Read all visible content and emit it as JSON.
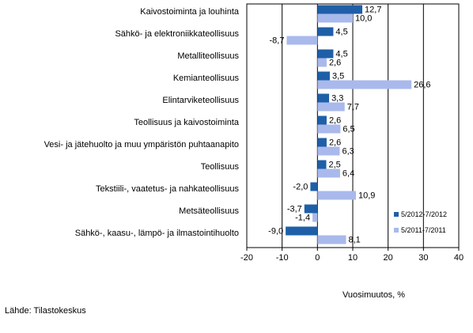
{
  "source": "Lähde: Tilastokeskus",
  "chart_data": {
    "type": "bar",
    "orientation": "horizontal",
    "categories": [
      "Kaivostoiminta ja louhinta",
      "Sähkö- ja elektroniikkateollisuus",
      "Metalliteollisuus",
      "Kemianteollisuus",
      "Elintarviketeollisuus",
      "Teollisuus ja kaivostoiminta",
      "Vesi- ja jätehuolto ja muu ympäristön puhtaanapito",
      "Teollisuus",
      "Tekstiili-, vaatetus- ja nahkateollisuus",
      "Metsäteollisuus",
      "Sähkö-, kaasu-, lämpö- ja ilmastointihuolto"
    ],
    "series": [
      {
        "name": "5/2012-7/2012",
        "color": "#1f5fa8",
        "values": [
          12.7,
          4.5,
          4.5,
          3.5,
          3.3,
          2.6,
          2.6,
          2.5,
          -2.0,
          -3.7,
          -9.0
        ],
        "labels": [
          "12,7",
          "4,5",
          "4,5",
          "3,5",
          "3,3",
          "2,6",
          "2,6",
          "2,5",
          "-2,0",
          "-3,7",
          "-9,0"
        ]
      },
      {
        "name": "5/2011-7/2011",
        "color": "#a9b9ec",
        "values": [
          10.0,
          -8.7,
          2.6,
          26.6,
          7.7,
          6.5,
          6.3,
          6.4,
          10.9,
          -1.4,
          8.1
        ],
        "labels": [
          "10,0",
          "-8,7",
          "2,6",
          "26,6",
          "7,7",
          "6,5",
          "6,3",
          "6,4",
          "10,9",
          "-1,4",
          "8,1"
        ]
      }
    ],
    "xlabel": "Vuosimuutos, %",
    "xlim": [
      -20,
      40
    ],
    "xticks": [
      -20,
      -10,
      0,
      10,
      20,
      30,
      40
    ],
    "grid": "vertical",
    "legend_position": "bottom-right"
  }
}
